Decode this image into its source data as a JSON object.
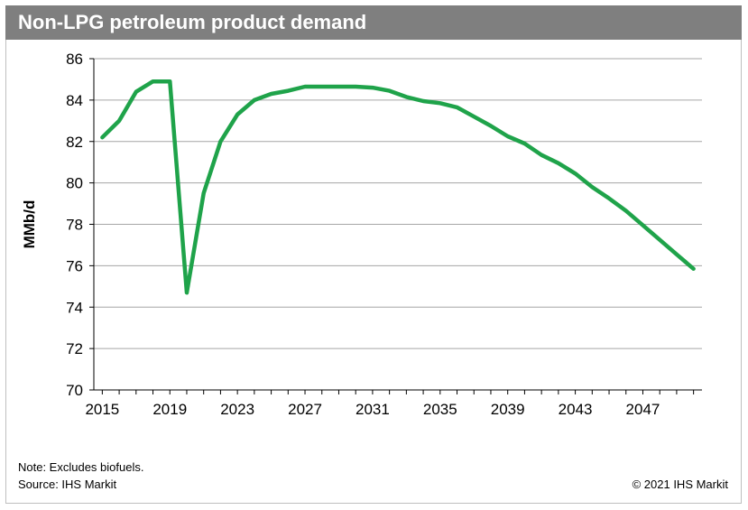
{
  "title": "Non-LPG petroleum product demand",
  "footer": {
    "note": "Note: Excludes biofuels.",
    "source": "Source: IHS Markit",
    "copyright": "© 2021 IHS Markit"
  },
  "colors": {
    "line": "#1fa34a",
    "title_bg": "#7f7f7f",
    "grid": "#a6a6a6"
  },
  "chart_data": {
    "type": "line",
    "title": "Non-LPG petroleum product demand",
    "xlabel": "",
    "ylabel": "MMb/d",
    "ylim": [
      70,
      86
    ],
    "xlim": [
      2015,
      2050
    ],
    "y_ticks": [
      70,
      72,
      74,
      76,
      78,
      80,
      82,
      84,
      86
    ],
    "x_ticks": [
      2015,
      2019,
      2023,
      2027,
      2031,
      2035,
      2039,
      2043,
      2047
    ],
    "grid": true,
    "legend": "none",
    "series": [
      {
        "x": [
          2015,
          2016,
          2017,
          2018,
          2019,
          2020,
          2021,
          2022,
          2023,
          2024,
          2025,
          2026,
          2027,
          2028,
          2029,
          2030,
          2031,
          2032,
          2033,
          2034,
          2035,
          2036,
          2037,
          2038,
          2039,
          2040,
          2041,
          2042,
          2043,
          2044,
          2045,
          2046,
          2047,
          2048,
          2049,
          2050
        ],
        "values": [
          82.2,
          83.0,
          84.4,
          84.9,
          84.9,
          74.7,
          79.5,
          82.0,
          83.3,
          84.0,
          84.3,
          84.45,
          84.65,
          84.65,
          84.65,
          84.65,
          84.6,
          84.45,
          84.15,
          83.95,
          83.85,
          83.65,
          83.2,
          82.75,
          82.25,
          81.9,
          81.35,
          80.95,
          80.45,
          79.8,
          79.25,
          78.65,
          77.95,
          77.25,
          76.55,
          75.85
        ]
      }
    ]
  }
}
